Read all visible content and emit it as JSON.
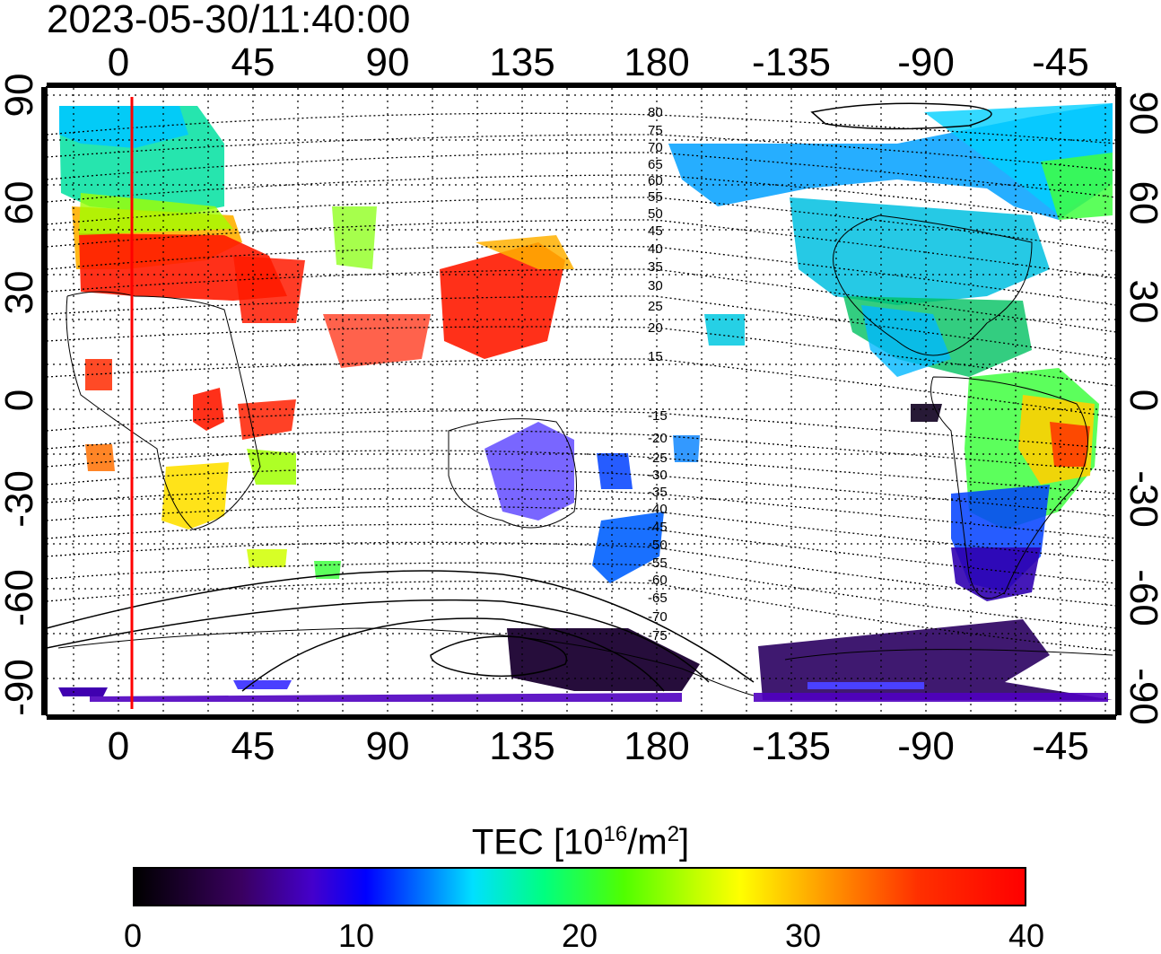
{
  "timestamp": "2023-05-30/11:40:00",
  "map": {
    "lon_ticks_top": [
      "0",
      "45",
      "90",
      "135",
      "180",
      "-135",
      "-90",
      "-45"
    ],
    "lon_ticks_bottom": [
      "0",
      "45",
      "90",
      "135",
      "180",
      "-135",
      "-90",
      "-45"
    ],
    "lat_ticks_left": [
      "90",
      "60",
      "30",
      "0",
      "-30",
      "-60",
      "-90"
    ],
    "lat_ticks_right": [
      "90",
      "60",
      "30",
      "0",
      "-30",
      "-60",
      "-90"
    ],
    "contour_labels_north": [
      "80",
      "75",
      "70",
      "65",
      "60",
      "55",
      "50",
      "45",
      "40",
      "35",
      "30",
      "25",
      "20",
      "15"
    ],
    "contour_labels_south": [
      "-15",
      "-20",
      "-25",
      "-30",
      "-35",
      "-40",
      "-45",
      "-50",
      "-55",
      "-60",
      "-65",
      "-70",
      "-75"
    ],
    "marker_line": {
      "longitude": 5,
      "color": "#ff0000"
    }
  },
  "colorbar": {
    "title_prefix": "TEC  [10",
    "title_exp1": "16",
    "title_mid": "/m",
    "title_exp2": "2",
    "title_suffix": "]",
    "min": 0,
    "max": 40,
    "tick_labels": [
      "0",
      "10",
      "20",
      "30",
      "40"
    ]
  }
}
